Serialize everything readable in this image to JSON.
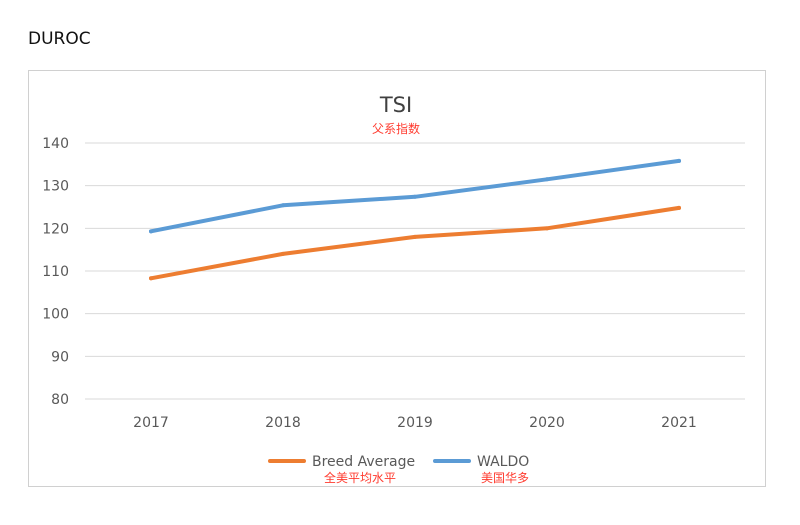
{
  "page_heading": "DUROC",
  "chart_data": {
    "type": "line",
    "title": "TSI",
    "subtitle": "父系指数",
    "xlabel": "",
    "ylabel": "",
    "categories": [
      "2017",
      "2018",
      "2019",
      "2020",
      "2021"
    ],
    "ylim": [
      80,
      140
    ],
    "yticks": [
      80,
      90,
      100,
      110,
      120,
      130,
      140
    ],
    "grid": true,
    "legend_position": "bottom",
    "series": [
      {
        "name": "Breed Average",
        "name_sub": "全美平均水平",
        "color": "#ed7d31",
        "values": [
          108.3,
          114.0,
          118.0,
          120.0,
          124.8
        ]
      },
      {
        "name": "WALDO",
        "name_sub": "美国华多",
        "color": "#5b9bd5",
        "values": [
          119.3,
          125.4,
          127.4,
          131.5,
          135.8
        ]
      }
    ]
  }
}
